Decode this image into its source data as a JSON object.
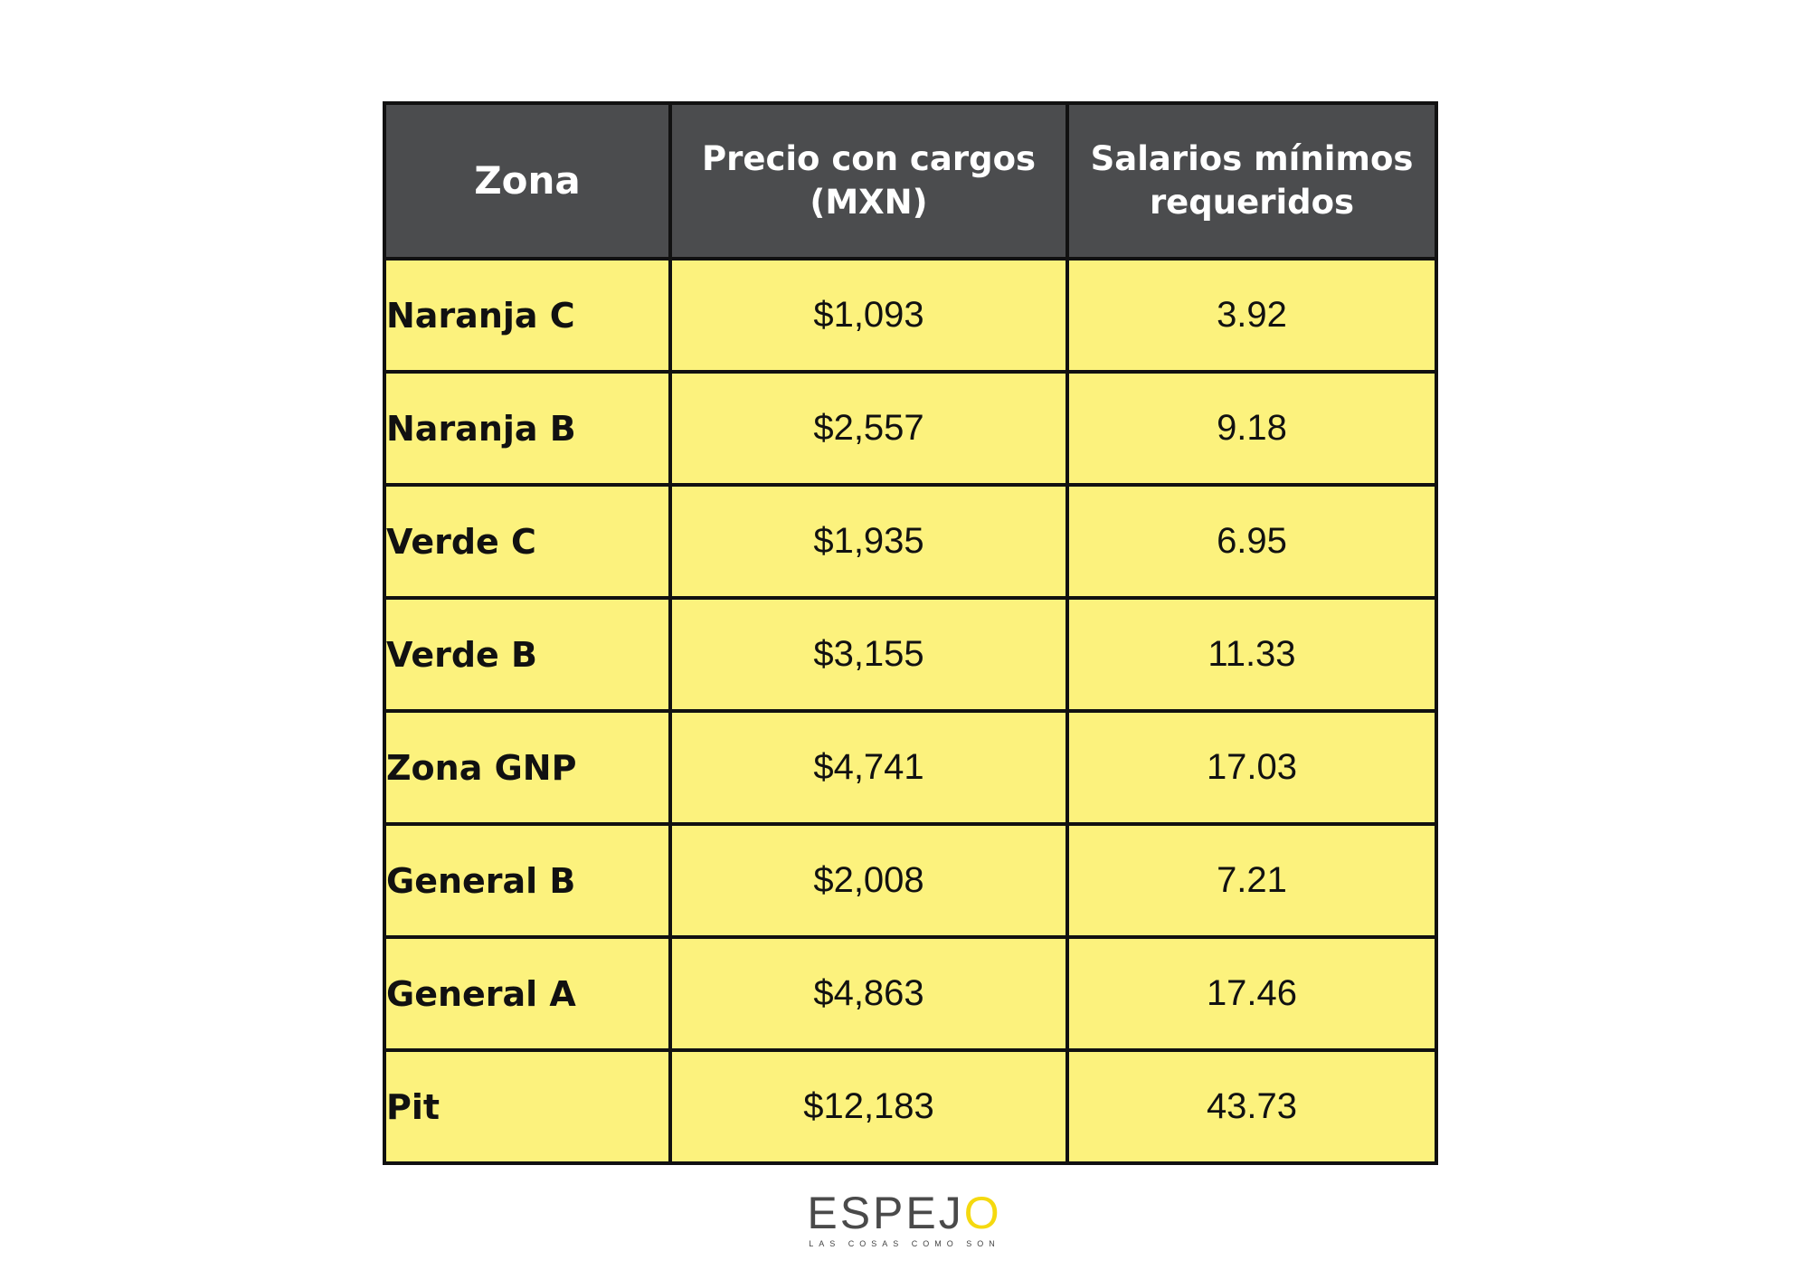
{
  "table": {
    "headers": {
      "zona": "Zona",
      "precio_line1": "Precio con cargos",
      "precio_line2": "(MXN)",
      "salarios_line1": "Salarios mínimos",
      "salarios_line2": "requeridos"
    },
    "rows": [
      {
        "zona": "Naranja C",
        "precio": "$1,093",
        "salarios": "3.92"
      },
      {
        "zona": "Naranja B",
        "precio": "$2,557",
        "salarios": "9.18"
      },
      {
        "zona": "Verde C",
        "precio": "$1,935",
        "salarios": "6.95"
      },
      {
        "zona": "Verde B",
        "precio": "$3,155",
        "salarios": "11.33"
      },
      {
        "zona": "Zona GNP",
        "precio": "$4,741",
        "salarios": "17.03"
      },
      {
        "zona": "General B",
        "precio": "$2,008",
        "salarios": "7.21"
      },
      {
        "zona": "General A",
        "precio": "$4,863",
        "salarios": "17.46"
      },
      {
        "zona": "Pit",
        "precio": "$12,183",
        "salarios": "43.73"
      }
    ]
  },
  "logo": {
    "word_main": "ESPEJ",
    "word_accent": "O",
    "tagline": "LAS COSAS COMO SON"
  },
  "colors": {
    "header_bg": "#4b4c4e",
    "cell_bg": "#fcf27d",
    "border": "#111111",
    "logo_accent": "#f5d90f"
  }
}
